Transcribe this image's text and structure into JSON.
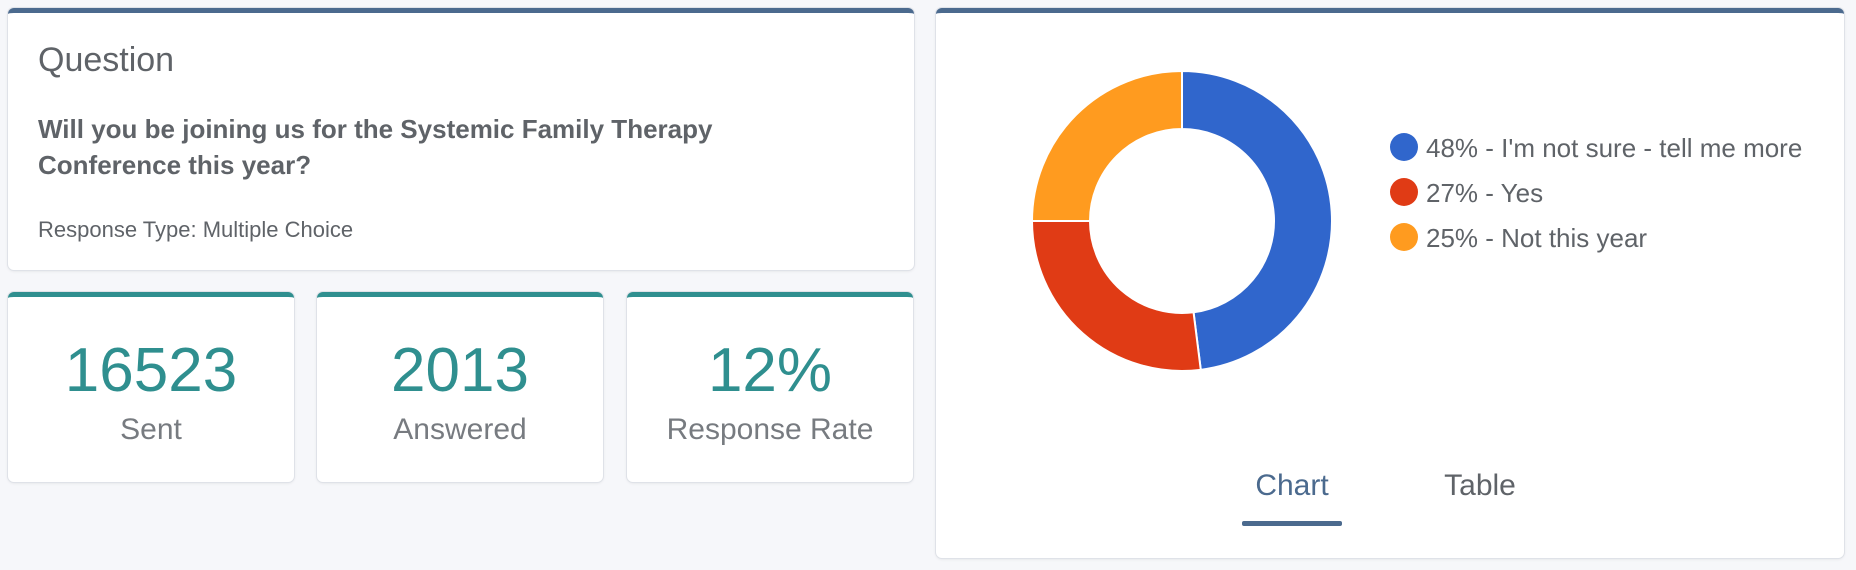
{
  "question": {
    "heading": "Question",
    "text": "Will you be joining us for the Systemic Family Therapy Conference this year?",
    "response_type": "Response Type: Multiple Choice"
  },
  "stats": {
    "sent": {
      "value": "16523",
      "label": "Sent"
    },
    "answered": {
      "value": "2013",
      "label": "Answered"
    },
    "rate": {
      "value": "12%",
      "label": "Response Rate"
    }
  },
  "chart_data": {
    "type": "pie",
    "donut": true,
    "slices": [
      {
        "label": "I'm not sure - tell me more",
        "value": 48,
        "color": "#3066cc"
      },
      {
        "label": "Yes",
        "value": 27,
        "color": "#e03b15"
      },
      {
        "label": "Not this year",
        "value": 25,
        "color": "#ff9b1f"
      }
    ],
    "legend": [
      "48% - I'm not sure - tell me more",
      "27% - Yes",
      "25% - Not this year"
    ],
    "legend_position": "right"
  },
  "tabs": {
    "chart": "Chart",
    "table": "Table",
    "active": "Chart"
  },
  "colors": {
    "accent_blue": "#4b6a8e",
    "accent_teal": "#2f8f8f"
  }
}
